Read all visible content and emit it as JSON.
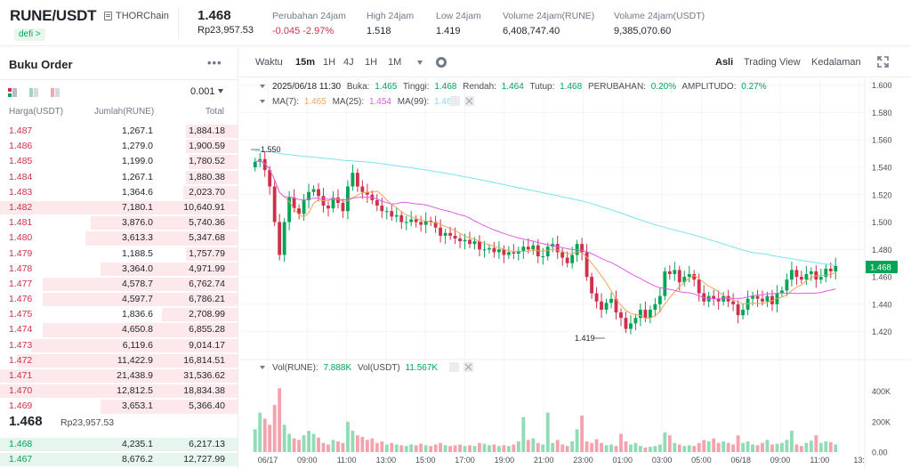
{
  "ticker": {
    "pair": "RUNE/USDT",
    "project": "THORChain",
    "tag": "defi >",
    "last_price": "1.468",
    "last_price_idr": "Rp23,957.53",
    "stats": [
      {
        "label": "Perubahan 24jam",
        "value": "-0.045 -2.97%",
        "down": true
      },
      {
        "label": "High 24jam",
        "value": "1.518"
      },
      {
        "label": "Low 24jam",
        "value": "1.419"
      },
      {
        "label": "Volume 24jam(RUNE)",
        "value": "6,408,747.40"
      },
      {
        "label": "Volume 24jam(USDT)",
        "value": "9,385,070.60"
      }
    ]
  },
  "orderbook": {
    "title": "Buku Order",
    "more": "•••",
    "precision": "0.001",
    "headers": {
      "price": "Harga(USDT)",
      "amount": "Jumlah(RUNE)",
      "total": "Total"
    },
    "asks": [
      {
        "price": "1.487",
        "amount": "1,267.1",
        "total": "1,884.18",
        "depth": 0.22
      },
      {
        "price": "1.486",
        "amount": "1,279.0",
        "total": "1,900.59",
        "depth": 0.22
      },
      {
        "price": "1.485",
        "amount": "1,199.0",
        "total": "1,780.52",
        "depth": 0.21
      },
      {
        "price": "1.484",
        "amount": "1,267.1",
        "total": "1,880.38",
        "depth": 0.22
      },
      {
        "price": "1.483",
        "amount": "1,364.6",
        "total": "2,023.70",
        "depth": 0.23
      },
      {
        "price": "1.482",
        "amount": "7,180.1",
        "total": "10,640.91",
        "depth": 1.0
      },
      {
        "price": "1.481",
        "amount": "3,876.0",
        "total": "5,740.36",
        "depth": 0.62
      },
      {
        "price": "1.480",
        "amount": "3,613.3",
        "total": "5,347.68",
        "depth": 0.64
      },
      {
        "price": "1.479",
        "amount": "1,188.5",
        "total": "1,757.79",
        "depth": 0.22
      },
      {
        "price": "1.478",
        "amount": "3,364.0",
        "total": "4,971.99",
        "depth": 0.58
      },
      {
        "price": "1.477",
        "amount": "4,578.7",
        "total": "6,762.74",
        "depth": 0.82
      },
      {
        "price": "1.476",
        "amount": "4,597.7",
        "total": "6,786.21",
        "depth": 0.82
      },
      {
        "price": "1.475",
        "amount": "1,836.6",
        "total": "2,708.99",
        "depth": 0.32
      },
      {
        "price": "1.474",
        "amount": "4,650.8",
        "total": "6,855.28",
        "depth": 0.82
      },
      {
        "price": "1.473",
        "amount": "6,119.6",
        "total": "9,014.17",
        "depth": 0.87
      },
      {
        "price": "1.472",
        "amount": "11,422.9",
        "total": "16,814.51",
        "depth": 0.93
      },
      {
        "price": "1.471",
        "amount": "21,438.9",
        "total": "31,536.62",
        "depth": 1.0
      },
      {
        "price": "1.470",
        "amount": "12,812.5",
        "total": "18,834.38",
        "depth": 1.0
      },
      {
        "price": "1.469",
        "amount": "3,653.1",
        "total": "5,366.40",
        "depth": 0.58
      }
    ],
    "mid_price": "1.468",
    "mid_price_idr": "Rp23,957.53",
    "bids": [
      {
        "price": "1.468",
        "amount": "4,235.1",
        "total": "6,217.13",
        "depth": 1.0
      },
      {
        "price": "1.467",
        "amount": "8,676.2",
        "total": "12,727.99",
        "depth": 1.0
      }
    ]
  },
  "chart_toolbar": {
    "label": "Waktu",
    "intervals": [
      "15m",
      "1H",
      "4J",
      "1H",
      "1M"
    ],
    "active_interval": "15m",
    "views": [
      "Asli",
      "Trading View",
      "Kedalaman"
    ],
    "active_view": "Asli"
  },
  "chart_data": {
    "type": "candlestick",
    "ohlc_legend": {
      "time": "2025/06/18 11:30",
      "open_label": "Buka:",
      "open": "1.465",
      "high_label": "Tinggi:",
      "high": "1.468",
      "low_label": "Rendah:",
      "low": "1.464",
      "close_label": "Tutup:",
      "close": "1.468",
      "change_label": "PERUBAHAN:",
      "change": "0.20%",
      "amp_label": "AMPLITUDO:",
      "amp": "0.27%"
    },
    "ma_legend": [
      {
        "label": "MA(7):",
        "value": "1.465",
        "color": "#f0a35c"
      },
      {
        "label": "MA(25):",
        "value": "1.454",
        "color": "#e05ce6"
      },
      {
        "label": "MA(99):",
        "value": "1.468",
        "color": "#7ae3ee"
      }
    ],
    "vol_legend": {
      "label1": "Vol(RUNE):",
      "value1": "7.888K",
      "label2": "Vol(USDT)",
      "value2": "11.567K"
    },
    "y_ticks": [
      1.6,
      1.58,
      1.56,
      1.54,
      1.52,
      1.5,
      1.48,
      1.46,
      1.44,
      1.42
    ],
    "y_tick_labels": [
      "1.600",
      "1.580",
      "1.560",
      "1.540",
      "1.520",
      "1.500",
      "1.480",
      "1.460",
      "1.440",
      "1.420"
    ],
    "ylim": [
      1.41,
      1.605
    ],
    "x_tick_labels": [
      "06/17",
      "09:00",
      "11:00",
      "13:00",
      "15:00",
      "17:00",
      "19:00",
      "21:00",
      "23:00",
      "01:00",
      "03:00",
      "05:00",
      "06/18",
      "09:00",
      "11:00",
      "13:"
    ],
    "last_price_tag": "1.468",
    "high_marker": "1.550",
    "low_marker": "1.419",
    "vol_ticks": [
      "400K",
      "200K",
      "0.00"
    ],
    "vol_ylim": [
      0,
      480
    ],
    "closes": [
      1.544,
      1.546,
      1.538,
      1.526,
      1.5,
      1.476,
      1.5,
      1.518,
      1.51,
      1.506,
      1.516,
      1.522,
      1.524,
      1.519,
      1.512,
      1.51,
      1.518,
      1.514,
      1.508,
      1.526,
      1.536,
      1.526,
      1.522,
      1.52,
      1.516,
      1.512,
      1.508,
      1.508,
      1.504,
      1.505,
      1.5,
      1.5,
      1.502,
      1.5,
      1.498,
      1.501,
      1.5,
      1.496,
      1.49,
      1.492,
      1.49,
      1.488,
      1.486,
      1.487,
      1.484,
      1.486,
      1.48,
      1.48,
      1.481,
      1.478,
      1.48,
      1.476,
      1.478,
      1.477,
      1.479,
      1.482,
      1.48,
      1.483,
      1.475,
      1.475,
      1.482,
      1.484,
      1.478,
      1.474,
      1.47,
      1.476,
      1.484,
      1.478,
      1.46,
      1.448,
      1.442,
      1.436,
      1.441,
      1.444,
      1.434,
      1.43,
      1.422,
      1.426,
      1.43,
      1.436,
      1.43,
      1.436,
      1.44,
      1.446,
      1.464,
      1.462,
      1.465,
      1.456,
      1.46,
      1.462,
      1.458,
      1.448,
      1.442,
      1.446,
      1.444,
      1.442,
      1.446,
      1.442,
      1.44,
      1.432,
      1.436,
      1.444,
      1.446,
      1.444,
      1.442,
      1.446,
      1.44,
      1.448,
      1.45,
      1.458,
      1.465,
      1.46,
      1.458,
      1.462,
      1.464,
      1.458,
      1.46,
      1.466,
      1.464,
      1.468
    ],
    "volumes": [
      150,
      260,
      220,
      180,
      310,
      420,
      180,
      120,
      90,
      80,
      110,
      140,
      120,
      95,
      60,
      50,
      80,
      70,
      60,
      200,
      140,
      110,
      100,
      80,
      90,
      60,
      70,
      50,
      60,
      50,
      45,
      40,
      50,
      45,
      55,
      45,
      40,
      50,
      60,
      45,
      40,
      45,
      50,
      40,
      45,
      40,
      60,
      55,
      45,
      50,
      40,
      45,
      40,
      50,
      70,
      230,
      80,
      90,
      60,
      50,
      260,
      60,
      80,
      50,
      40,
      70,
      150,
      240,
      70,
      60,
      85,
      60,
      45,
      50,
      40,
      120,
      70,
      50,
      60,
      40,
      30,
      35,
      40,
      50,
      130,
      110,
      60,
      50,
      40,
      45,
      40,
      60,
      80,
      70,
      90,
      60,
      70,
      60,
      50,
      110,
      60,
      70,
      50,
      45,
      60,
      80,
      50,
      55,
      60,
      80,
      140,
      50,
      40,
      60,
      75,
      110,
      60,
      70,
      65,
      50
    ]
  }
}
